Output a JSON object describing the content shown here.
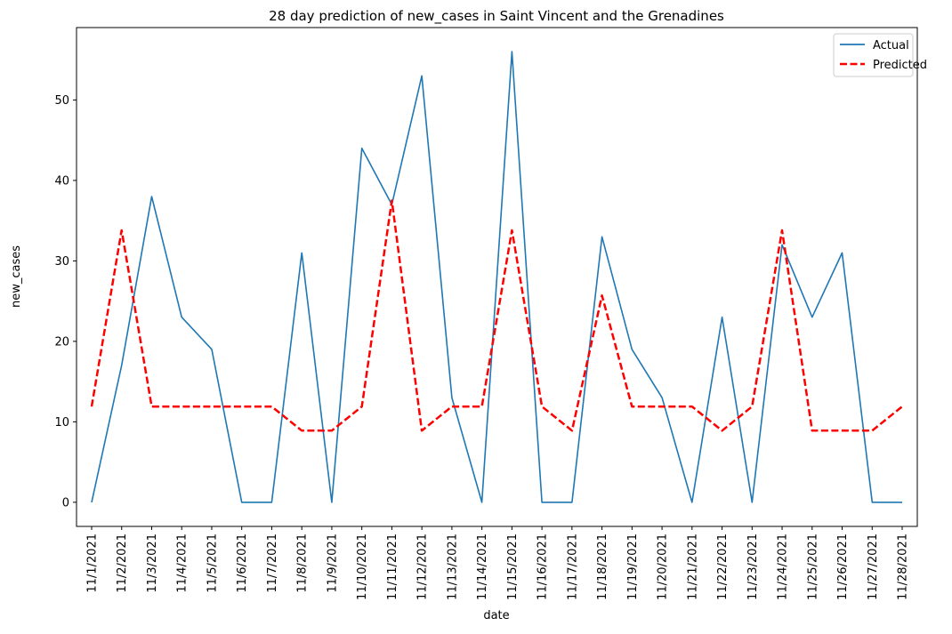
{
  "chart_data": {
    "type": "line",
    "title": "28 day prediction of new_cases in Saint Vincent and the Grenadines",
    "xlabel": "date",
    "ylabel": "new_cases",
    "categories": [
      "11/1/2021",
      "11/2/2021",
      "11/3/2021",
      "11/4/2021",
      "11/5/2021",
      "11/6/2021",
      "11/7/2021",
      "11/8/2021",
      "11/9/2021",
      "11/10/2021",
      "11/11/2021",
      "11/12/2021",
      "11/13/2021",
      "11/14/2021",
      "11/15/2021",
      "11/16/2021",
      "11/17/2021",
      "11/18/2021",
      "11/19/2021",
      "11/20/2021",
      "11/21/2021",
      "11/22/2021",
      "11/23/2021",
      "11/24/2021",
      "11/25/2021",
      "11/26/2021",
      "11/27/2021",
      "11/28/2021"
    ],
    "ylim": [
      -3,
      59
    ],
    "yticks": [
      0,
      10,
      20,
      30,
      40,
      50
    ],
    "grid": false,
    "legend_position": "top-right",
    "series": [
      {
        "name": "Actual",
        "color": "#1f77b4",
        "style": "solid",
        "values": [
          0,
          17,
          38,
          23,
          19,
          0,
          0,
          31,
          0,
          44,
          37,
          53,
          13,
          0,
          56,
          0,
          0,
          33,
          19,
          13,
          0,
          23,
          0,
          32,
          23,
          31,
          0,
          0
        ]
      },
      {
        "name": "Predicted",
        "color": "#ff0000",
        "style": "dashed",
        "values": [
          11.9,
          33.8,
          11.9,
          11.9,
          11.9,
          11.9,
          11.9,
          8.9,
          8.9,
          11.9,
          37.5,
          8.9,
          11.9,
          11.9,
          33.8,
          11.9,
          8.9,
          25.7,
          11.9,
          11.9,
          11.9,
          8.9,
          11.9,
          33.8,
          8.9,
          8.9,
          8.9,
          11.9
        ]
      }
    ]
  }
}
